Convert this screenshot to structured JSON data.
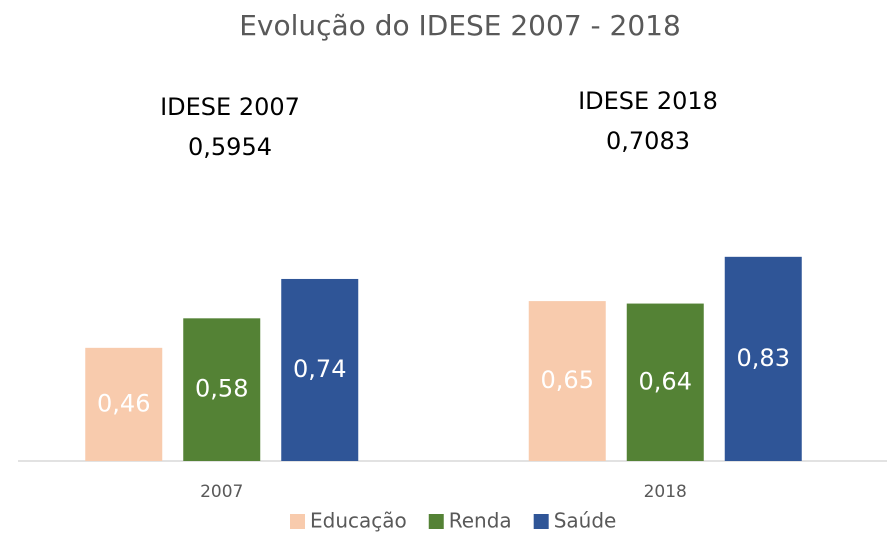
{
  "chart_data": {
    "type": "bar",
    "title": "Evolução do IDESE 2007 - 2018",
    "categories": [
      "2007",
      "2018"
    ],
    "series": [
      {
        "name": "Educação",
        "color": "#f8cbad",
        "values": [
          0.46,
          0.65
        ],
        "value_labels": [
          "0,46",
          "0,65"
        ]
      },
      {
        "name": "Renda",
        "color": "#548235",
        "values": [
          0.58,
          0.64
        ],
        "value_labels": [
          "0,58",
          "0,64"
        ]
      },
      {
        "name": "Saúde",
        "color": "#2f5597",
        "values": [
          0.74,
          0.83
        ],
        "value_labels": [
          "0,74",
          "0,83"
        ]
      }
    ],
    "ylim": [
      0,
      1
    ],
    "annotations": [
      {
        "title": "IDESE 2007",
        "text": "0,5954"
      },
      {
        "title": "IDESE 2018",
        "text": "0,7083"
      }
    ],
    "legend": "bottom"
  }
}
